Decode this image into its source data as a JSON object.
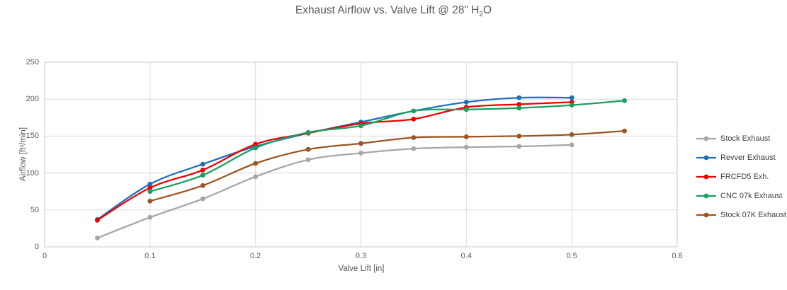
{
  "title": {
    "prefix": "Exhaust Airflow vs. Valve Lift @ 28\" H",
    "sub": "2",
    "suffix": "O"
  },
  "chart_data": {
    "type": "line",
    "title": "Exhaust Airflow vs. Valve Lift @ 28\" H₂O",
    "xlabel": "Valve Lift [in]",
    "ylabel": "Airflow [ft³/min]",
    "xlim": [
      0,
      0.6
    ],
    "ylim": [
      0,
      250
    ],
    "x_ticks": [
      0,
      0.1,
      0.2,
      0.3,
      0.4,
      0.5,
      0.6
    ],
    "y_ticks": [
      0,
      50,
      100,
      150,
      200,
      250
    ],
    "grid": true,
    "smooth_lines": true,
    "marker": "circle",
    "legend_position": "right",
    "grid_color": "#d9d9d9",
    "border_color": "#c9c9c9",
    "series": [
      {
        "name": "Stock Exhaust",
        "color": "#a6a6a6",
        "x": [
          0.05,
          0.1,
          0.15,
          0.2,
          0.25,
          0.3,
          0.35,
          0.4,
          0.45,
          0.5
        ],
        "y": [
          12,
          40,
          65,
          95,
          118,
          127,
          133,
          135,
          136,
          138
        ]
      },
      {
        "name": "Revver Exhaust",
        "color": "#1f6fc0",
        "x": [
          0.05,
          0.1,
          0.15,
          0.2,
          0.25,
          0.3,
          0.35,
          0.4,
          0.45,
          0.5
        ],
        "y": [
          37,
          85,
          112,
          136,
          154,
          169,
          184,
          196,
          202,
          202
        ]
      },
      {
        "name": "FRCFD5 Exh.",
        "color": "#ee0000",
        "x": [
          0.05,
          0.1,
          0.15,
          0.2,
          0.25,
          0.3,
          0.35,
          0.4,
          0.45,
          0.5
        ],
        "y": [
          36,
          80,
          104,
          139,
          154,
          167,
          173,
          189,
          193,
          196
        ]
      },
      {
        "name": "CNC 07k Exhaust",
        "color": "#18a05e",
        "x": [
          0.1,
          0.15,
          0.2,
          0.25,
          0.3,
          0.35,
          0.4,
          0.45,
          0.5,
          0.55
        ],
        "y": [
          75,
          97,
          134,
          155,
          164,
          184,
          186,
          188,
          192,
          198
        ]
      },
      {
        "name": "Stock 07K Exhaust",
        "color": "#9c5422",
        "x": [
          0.1,
          0.15,
          0.2,
          0.25,
          0.3,
          0.35,
          0.4,
          0.45,
          0.5,
          0.55
        ],
        "y": [
          62,
          83,
          113,
          132,
          140,
          148,
          149,
          150,
          152,
          157
        ]
      }
    ]
  }
}
